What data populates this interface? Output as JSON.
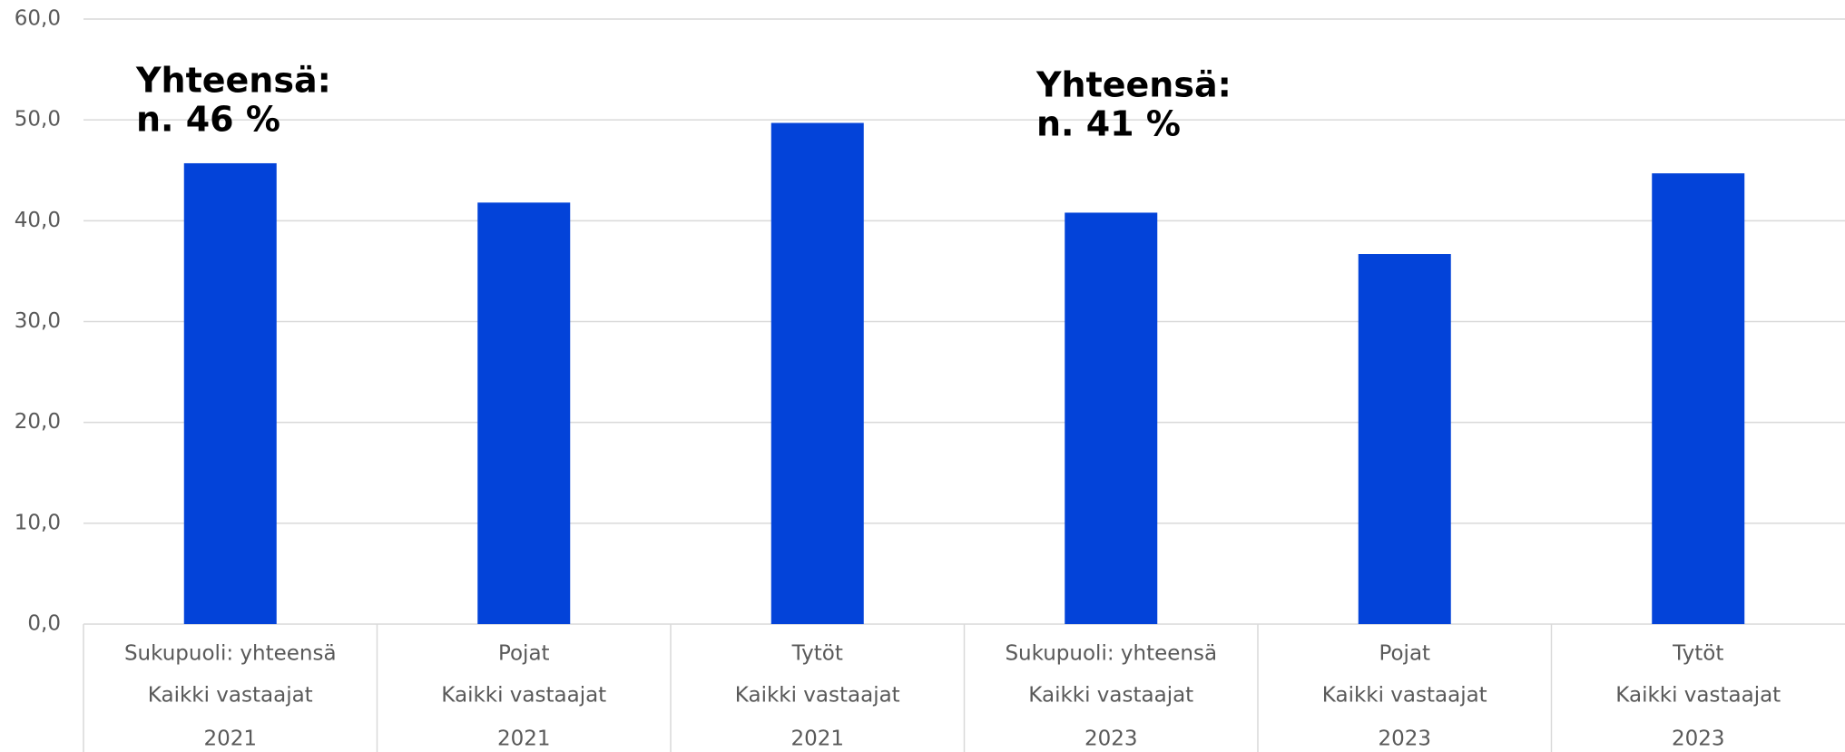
{
  "chart_data": {
    "type": "bar",
    "categories": [
      [
        "Sukupuoli: yhteensä",
        "Kaikki vastaajat",
        "2021"
      ],
      [
        "Pojat",
        "Kaikki vastaajat",
        "2021"
      ],
      [
        "Tytöt",
        "Kaikki vastaajat",
        "2021"
      ],
      [
        "Sukupuoli: yhteensä",
        "Kaikki vastaajat",
        "2023"
      ],
      [
        "Pojat",
        "Kaikki vastaajat",
        "2023"
      ],
      [
        "Tytöt",
        "Kaikki vastaajat",
        "2023"
      ]
    ],
    "values": [
      45.7,
      41.8,
      49.7,
      40.8,
      36.7,
      44.7
    ],
    "color": "#0343d9",
    "ylim": [
      0,
      60
    ],
    "yticks": [
      {
        "value": 0,
        "label": "0,0"
      },
      {
        "value": 10,
        "label": "10,0"
      },
      {
        "value": 20,
        "label": "20,0"
      },
      {
        "value": 30,
        "label": "30,0"
      },
      {
        "value": 40,
        "label": "40,0"
      },
      {
        "value": 50,
        "label": "50,0"
      },
      {
        "value": 60,
        "label": "60,0"
      }
    ],
    "grid": true,
    "annotations": [
      {
        "lines": [
          "Yhteensä:",
          "n. 46 %"
        ]
      },
      {
        "lines": [
          "Yhteensä:",
          "n. 41 %"
        ]
      }
    ]
  }
}
